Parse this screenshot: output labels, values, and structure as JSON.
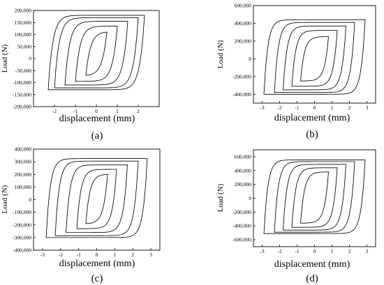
{
  "figure": {
    "panels": [
      {
        "id": "a",
        "label": "(a)"
      },
      {
        "id": "b",
        "label": "(b)"
      },
      {
        "id": "c",
        "label": "(c)"
      },
      {
        "id": "d",
        "label": "(d)"
      }
    ]
  },
  "chart_data": [
    {
      "panel": "(a)",
      "type": "line",
      "xlabel": "displacement (mm)",
      "ylabel": "Load (N)",
      "xlim": [
        -3,
        3
      ],
      "ylim": [
        -200000,
        200000
      ],
      "xticks": [
        -2,
        -1,
        0,
        1,
        2
      ],
      "yticks": [
        -200000,
        -150000,
        -100000,
        -50000,
        0,
        50000,
        100000,
        150000,
        200000
      ],
      "ytick_labels": [
        "-200,000",
        "-150,000",
        "-100,000",
        "-50,000",
        "0",
        "50,000",
        "100,000",
        "150,000",
        "200,000"
      ],
      "loops": [
        {
          "dmax": 0.5,
          "fpos": 110000,
          "fneg": -70000
        },
        {
          "dmax": 1.0,
          "fpos": 135000,
          "fneg": -95000
        },
        {
          "dmax": 1.5,
          "fpos": 155000,
          "fneg": -110000
        },
        {
          "dmax": 2.0,
          "fpos": 170000,
          "fneg": -122000
        },
        {
          "dmax": 2.3,
          "fpos": 180000,
          "fneg": -130000
        }
      ]
    },
    {
      "panel": "(b)",
      "type": "line",
      "xlabel": "displacement (mm)",
      "ylabel": "Load (N)",
      "xlim": [
        -3.5,
        3.5
      ],
      "ylim": [
        -500000,
        600000
      ],
      "xticks": [
        -3,
        -2,
        -1,
        0,
        1,
        2,
        3
      ],
      "yticks": [
        -400000,
        -200000,
        0,
        200000,
        400000,
        600000
      ],
      "ytick_labels": [
        "-400,000",
        "-200,000",
        "0",
        "200,000",
        "400,000",
        "600,000"
      ],
      "loops": [
        {
          "dmax": 0.8,
          "fpos": 250000,
          "fneg": -250000
        },
        {
          "dmax": 1.3,
          "fpos": 320000,
          "fneg": -310000
        },
        {
          "dmax": 1.8,
          "fpos": 370000,
          "fneg": -350000
        },
        {
          "dmax": 2.3,
          "fpos": 410000,
          "fneg": -380000
        },
        {
          "dmax": 2.9,
          "fpos": 440000,
          "fneg": -400000
        }
      ]
    },
    {
      "panel": "(c)",
      "type": "line",
      "xlabel": "displacement (mm)",
      "ylabel": "Load (N)",
      "xlim": [
        -3.5,
        3.5
      ],
      "ylim": [
        -400000,
        400000
      ],
      "xticks": [
        -3,
        -2,
        -1,
        0,
        1,
        2,
        3
      ],
      "yticks": [
        -400000,
        -300000,
        -200000,
        -100000,
        0,
        100000,
        200000,
        300000,
        400000
      ],
      "ytick_labels": [
        "-400,000",
        "-300,000",
        "-200,000",
        "-100,000",
        "0",
        "100,000",
        "200,000",
        "300,000",
        "400,000"
      ],
      "loops": [
        {
          "dmax": 0.6,
          "fpos": 200000,
          "fneg": -190000
        },
        {
          "dmax": 1.1,
          "fpos": 240000,
          "fneg": -230000
        },
        {
          "dmax": 1.7,
          "fpos": 275000,
          "fneg": -260000
        },
        {
          "dmax": 2.3,
          "fpos": 305000,
          "fneg": -285000
        },
        {
          "dmax": 2.8,
          "fpos": 325000,
          "fneg": -300000
        }
      ]
    },
    {
      "panel": "(d)",
      "type": "line",
      "xlabel": "displacement (mm)",
      "ylabel": "Load (N)",
      "xlim": [
        -3.5,
        3.5
      ],
      "ylim": [
        -700000,
        700000
      ],
      "xticks": [
        -3,
        -2,
        -1,
        0,
        1,
        2,
        3
      ],
      "yticks": [
        -600000,
        -400000,
        -200000,
        0,
        200000,
        400000,
        600000
      ],
      "ytick_labels": [
        "-600,000",
        "-400,000",
        "-200,000",
        "0",
        "200,000",
        "400,000",
        "600,000"
      ],
      "loops": [
        {
          "dmax": 0.8,
          "fpos": 380000,
          "fneg": -360000
        },
        {
          "dmax": 1.3,
          "fpos": 440000,
          "fneg": -420000
        },
        {
          "dmax": 1.8,
          "fpos": 490000,
          "fneg": -460000
        },
        {
          "dmax": 2.3,
          "fpos": 530000,
          "fneg": -490000
        },
        {
          "dmax": 2.9,
          "fpos": 555000,
          "fneg": -510000
        }
      ]
    }
  ]
}
